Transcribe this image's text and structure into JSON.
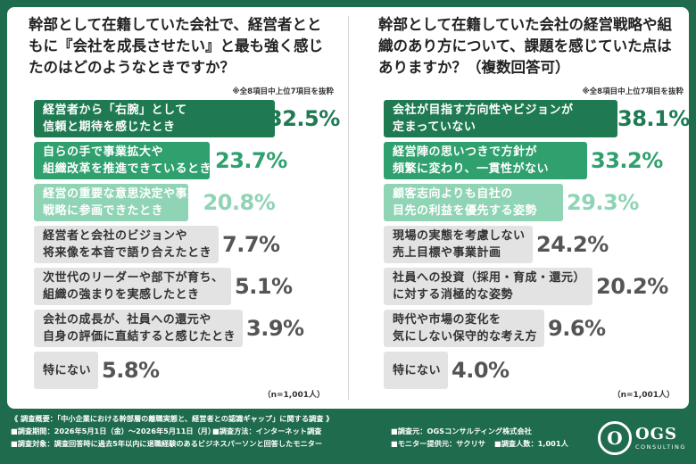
{
  "chart_data": [
    {
      "type": "bar",
      "title": "幹部として在籍していた会社で、経営者とともに『会社を成長させたい』と最も強く感じたのはどのようなときですか？",
      "subtitle": "※全8項目中上位7項目を抜粋",
      "sample": "（n=1,001人）",
      "categories": [
        "経営者から「右腕」として\n信頼と期待を感じたとき",
        "自らの手で事業拡大や\n組織改革を推進できているとき",
        "経営の重要な意思決定や事業\n戦略に参画できたとき",
        "経営者と会社のビジョンや\n将来像を本音で語り合えたとき",
        "次世代のリーダーや部下が育ち、\n組織の強まりを実感したとき",
        "会社の成長が、社員への還元や\n自身の評価に直結すると感じたとき",
        "特にない"
      ],
      "values": [
        32.5,
        23.7,
        20.8,
        7.7,
        5.1,
        3.9,
        5.8
      ],
      "value_labels": [
        "32.5%",
        "23.7%",
        "20.8%",
        "7.7%",
        "5.1%",
        "3.9%",
        "5.8%"
      ],
      "bar_colors": [
        "#1f7a52",
        "#2fa06e",
        "#8fd4b4",
        "#e3e3e3",
        "#e3e3e3",
        "#e3e3e3",
        "#e3e3e3"
      ],
      "label_colors": [
        "#ffffff",
        "#ffffff",
        "#ffffff",
        "#333333",
        "#333333",
        "#333333",
        "#333333"
      ],
      "value_colors": [
        "#1f7a52",
        "#2fa06e",
        "#8fd4b4",
        "#555555",
        "#555555",
        "#555555",
        "#555555"
      ]
    },
    {
      "type": "bar",
      "title": "幹部として在籍していた会社の経営戦略や組織のあり方について、課題を感じていた点はありますか？（複数回答可）",
      "subtitle": "※全8項目中上位7項目を抜粋",
      "sample": "（n=1,001人）",
      "categories": [
        "会社が目指す方向性やビジョンが\n定まっていない",
        "経営陣の思いつきで方針が\n頻繁に変わり、一貫性がない",
        "顧客志向よりも自社の\n目先の利益を優先する姿勢",
        "現場の実態を考慮しない\n売上目標や事業計画",
        "社員への投資（採用・育成・還元）\nに対する消極的な姿勢",
        "時代や市場の変化を\n気にしない保守的な考え方",
        "特にない"
      ],
      "values": [
        38.1,
        33.2,
        29.3,
        24.2,
        20.2,
        9.6,
        4.0
      ],
      "value_labels": [
        "38.1%",
        "33.2%",
        "29.3%",
        "24.2%",
        "20.2%",
        "9.6%",
        "4.0%"
      ],
      "bar_colors": [
        "#1f7a52",
        "#2fa06e",
        "#8fd4b4",
        "#e3e3e3",
        "#e3e3e3",
        "#e3e3e3",
        "#e3e3e3"
      ],
      "label_colors": [
        "#ffffff",
        "#ffffff",
        "#ffffff",
        "#333333",
        "#333333",
        "#333333",
        "#333333"
      ],
      "value_colors": [
        "#1f7a52",
        "#2fa06e",
        "#8fd4b4",
        "#555555",
        "#555555",
        "#555555",
        "#555555"
      ]
    }
  ],
  "footer": {
    "summary": "《 調査概要：「中小企業における幹部層の離職実態と、経営者との認識ギャップ」に関する調査 》",
    "period": "■調査期間：2026年5月1日（金）～2026年5月11日（月）",
    "method": "■調査方法：インターネット調査",
    "org": "■調査元：OGSコンサルティング株式会社",
    "target": "■調査対象：調査回答時に過去5年以内に退職経験のあるビジネスパーソンと回答したモニター",
    "provider": "■モニター提供元：サクリサ",
    "count": "■調査人数：1,001人"
  },
  "logo": {
    "mark": "O",
    "main": "OGS",
    "sub": "CONSULTING"
  }
}
